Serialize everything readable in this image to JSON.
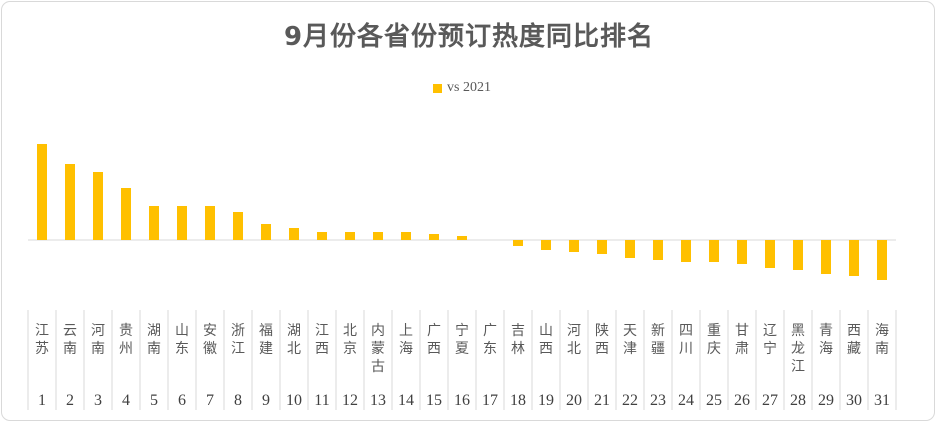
{
  "title": "9月份各省份预订热度同比排名",
  "colors": {
    "bar": "#ffc000",
    "axis": "#d9d9d9",
    "text": "#595959"
  },
  "chart_data": {
    "type": "bar",
    "title": "9月份各省份预订热度同比排名",
    "legend": {
      "position": "top",
      "entries": [
        "vs 2021"
      ]
    },
    "categories": [
      "江苏",
      "云南",
      "河南",
      "贵州",
      "湖南",
      "山东",
      "安徽",
      "浙江",
      "福建",
      "湖北",
      "江西",
      "北京",
      "内蒙古",
      "上海",
      "广西",
      "宁夏",
      "广东",
      "吉林",
      "山西",
      "河北",
      "陕西",
      "天津",
      "新疆",
      "四川",
      "重庆",
      "甘肃",
      "辽宁",
      "黑龙江",
      "青海",
      "西藏",
      "海南"
    ],
    "ranks": [
      "1",
      "2",
      "3",
      "4",
      "5",
      "6",
      "7",
      "8",
      "9",
      "10",
      "11",
      "12",
      "13",
      "14",
      "15",
      "16",
      "17",
      "18",
      "19",
      "20",
      "21",
      "22",
      "23",
      "24",
      "25",
      "26",
      "27",
      "28",
      "29",
      "30",
      "31"
    ],
    "series": [
      {
        "name": "vs 2021",
        "values": [
          48,
          38,
          34,
          26,
          17,
          17,
          17,
          14,
          8,
          6,
          4,
          4,
          4,
          4,
          3,
          2,
          0,
          -3,
          -5,
          -6,
          -7,
          -9,
          -10,
          -11,
          -11,
          -12,
          -14,
          -15,
          -17,
          -18,
          -20
        ]
      }
    ],
    "ylim": [
      -35,
      60
    ],
    "grid": false
  }
}
